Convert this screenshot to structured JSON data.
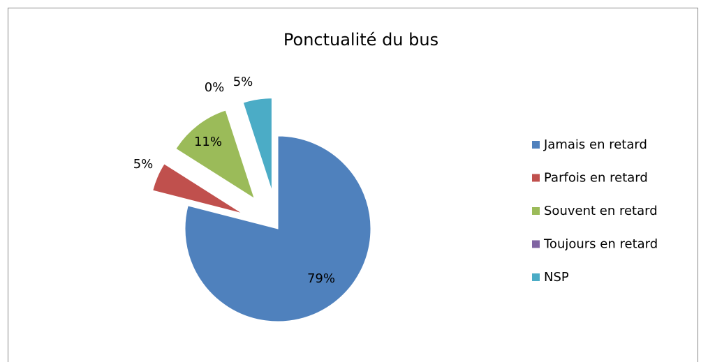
{
  "chart_data": {
    "type": "pie",
    "title": "Ponctualité du bus",
    "categories": [
      "Jamais en retard",
      "Parfois en retard",
      "Souvent en retard",
      "Toujours en retard",
      "NSP"
    ],
    "values": [
      79,
      5,
      11,
      0,
      5
    ],
    "value_labels": [
      "79%",
      "5%",
      "11%",
      "0%",
      "5%"
    ],
    "colors": [
      "#4f81bd",
      "#c0504d",
      "#9bbb59",
      "#8064a2",
      "#4bacc6"
    ],
    "legend": "right"
  }
}
